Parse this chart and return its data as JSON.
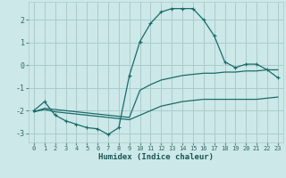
{
  "xlabel": "Humidex (Indice chaleur)",
  "bg_color": "#cce8e8",
  "grid_color": "#aacccc",
  "line_color": "#1a6b6b",
  "xlim": [
    -0.5,
    23.5
  ],
  "ylim": [
    -3.4,
    2.8
  ],
  "xticks": [
    0,
    1,
    2,
    3,
    4,
    5,
    6,
    7,
    8,
    9,
    10,
    11,
    12,
    13,
    14,
    15,
    16,
    17,
    18,
    19,
    20,
    21,
    22,
    23
  ],
  "yticks": [
    -3,
    -2,
    -1,
    0,
    1,
    2
  ],
  "line1_x": [
    0,
    1,
    2,
    3,
    4,
    5,
    6,
    7,
    8,
    9,
    10,
    11,
    12,
    13,
    14,
    15,
    16,
    17,
    18,
    19,
    20,
    21,
    22,
    23
  ],
  "line1_y": [
    -2.0,
    -1.6,
    -2.2,
    -2.45,
    -2.6,
    -2.75,
    -2.8,
    -3.05,
    -2.75,
    -0.45,
    1.05,
    1.85,
    2.35,
    2.5,
    2.5,
    2.5,
    2.0,
    1.3,
    0.15,
    -0.1,
    0.05,
    0.05,
    -0.2,
    -0.55
  ],
  "line2_x": [
    0,
    1,
    2,
    3,
    4,
    5,
    6,
    7,
    8,
    9,
    10,
    11,
    12,
    13,
    14,
    15,
    16,
    17,
    18,
    19,
    20,
    21,
    22,
    23
  ],
  "line2_y": [
    -2.05,
    -1.9,
    -1.95,
    -2.0,
    -2.05,
    -2.1,
    -2.15,
    -2.2,
    -2.25,
    -2.3,
    -1.1,
    -0.85,
    -0.65,
    -0.55,
    -0.45,
    -0.4,
    -0.35,
    -0.35,
    -0.3,
    -0.3,
    -0.25,
    -0.25,
    -0.2,
    -0.2
  ],
  "line3_x": [
    0,
    1,
    2,
    3,
    4,
    5,
    6,
    7,
    8,
    9,
    10,
    11,
    12,
    13,
    14,
    15,
    16,
    17,
    18,
    19,
    20,
    21,
    22,
    23
  ],
  "line3_y": [
    -2.05,
    -1.95,
    -2.05,
    -2.1,
    -2.15,
    -2.2,
    -2.25,
    -2.3,
    -2.35,
    -2.4,
    -2.2,
    -2.0,
    -1.8,
    -1.7,
    -1.6,
    -1.55,
    -1.5,
    -1.5,
    -1.5,
    -1.5,
    -1.5,
    -1.5,
    -1.45,
    -1.4
  ]
}
